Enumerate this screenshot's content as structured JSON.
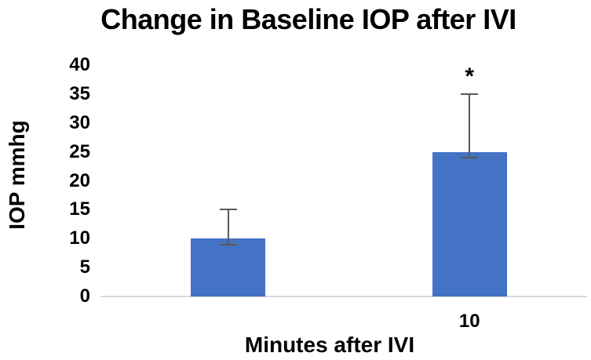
{
  "chart_data": {
    "type": "bar",
    "title": "Change in Baseline IOP after IVI",
    "xlabel": "Minutes after IVI",
    "ylabel": "IOP mmhg",
    "categories": [
      "",
      "10"
    ],
    "series": [
      {
        "name": "IOP",
        "values": [
          10,
          25
        ],
        "error_low": [
          9,
          24
        ],
        "error_high": [
          15,
          35
        ]
      }
    ],
    "annotations": [
      {
        "text": "*",
        "category_index": 1,
        "y": 38
      }
    ],
    "ylim": [
      0,
      40
    ],
    "yticks": [
      0,
      5,
      10,
      15,
      20,
      25,
      30,
      35,
      40
    ],
    "grid": false,
    "legend": false,
    "colors": {
      "bar": "#4472C4",
      "error_bar": "#595959",
      "axis_line": "#D9D9D9",
      "text": "#000000",
      "background": "#FFFFFF"
    }
  }
}
